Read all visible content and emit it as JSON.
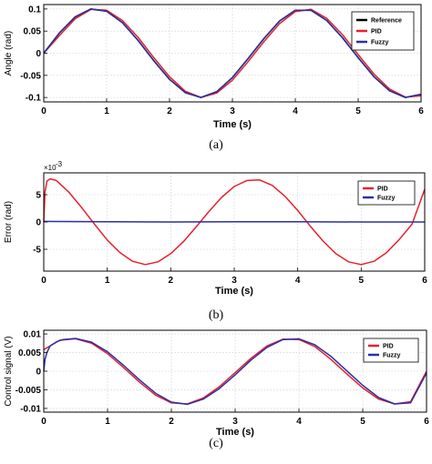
{
  "chart_data": [
    {
      "type": "line",
      "caption": "(a)",
      "xlabel": "Time (s)",
      "ylabel": "Angle (rad)",
      "xlim": [
        0,
        6
      ],
      "ylim": [
        -0.11,
        0.11
      ],
      "xticks": [
        0,
        1,
        2,
        3,
        4,
        5,
        6
      ],
      "xtick_labels": [
        "0",
        "1",
        "2",
        "3",
        "4",
        "5",
        "6"
      ],
      "yticks": [
        -0.1,
        -0.05,
        0,
        0.05,
        0.1
      ],
      "ytick_labels": [
        "-0.1",
        "-0.05",
        "0",
        "0.05",
        "0.1"
      ],
      "grid": true,
      "legend": "top-right",
      "series": [
        {
          "name": "Reference",
          "color": "#000000",
          "x": [
            0,
            0.25,
            0.5,
            0.75,
            1,
            1.25,
            1.5,
            1.75,
            2,
            2.25,
            2.5,
            2.75,
            3,
            3.25,
            3.5,
            3.75,
            4,
            4.25,
            4.5,
            4.75,
            5,
            5.25,
            5.5,
            5.75,
            6
          ],
          "y": [
            0,
            0.046,
            0.082,
            0.1,
            0.095,
            0.069,
            0.029,
            -0.017,
            -0.059,
            -0.089,
            -0.1,
            -0.087,
            -0.055,
            -0.012,
            0.033,
            0.073,
            0.097,
            0.097,
            0.074,
            0.035,
            -0.01,
            -0.053,
            -0.085,
            -0.1,
            -0.093
          ]
        },
        {
          "name": "PID",
          "color": "#e8202a",
          "x": [
            0,
            0.25,
            0.5,
            0.75,
            1,
            1.25,
            1.5,
            1.75,
            2,
            2.25,
            2.5,
            2.75,
            3,
            3.25,
            3.5,
            3.75,
            4,
            4.25,
            4.5,
            4.75,
            5,
            5.25,
            5.5,
            5.75,
            6
          ],
          "y": [
            0,
            0.04,
            0.078,
            0.099,
            0.097,
            0.074,
            0.036,
            -0.01,
            -0.053,
            -0.086,
            -0.1,
            -0.09,
            -0.061,
            -0.019,
            0.026,
            0.067,
            0.094,
            0.099,
            0.079,
            0.042,
            -0.003,
            -0.047,
            -0.081,
            -0.099,
            -0.096
          ]
        },
        {
          "name": "Fuzzy",
          "color": "#2830a8",
          "x": [
            0,
            0.25,
            0.5,
            0.75,
            1,
            1.25,
            1.5,
            1.75,
            2,
            2.25,
            2.5,
            2.75,
            3,
            3.25,
            3.5,
            3.75,
            4,
            4.25,
            4.5,
            4.75,
            5,
            5.25,
            5.5,
            5.75,
            6
          ],
          "y": [
            0,
            0.046,
            0.082,
            0.1,
            0.095,
            0.069,
            0.029,
            -0.017,
            -0.059,
            -0.089,
            -0.1,
            -0.087,
            -0.055,
            -0.012,
            0.033,
            0.073,
            0.097,
            0.097,
            0.074,
            0.035,
            -0.01,
            -0.053,
            -0.085,
            -0.1,
            -0.093
          ]
        }
      ]
    },
    {
      "type": "line",
      "caption": "(b)",
      "xlabel": "Time (s)",
      "ylabel": "Error (rad)",
      "y_multiplier": "×10",
      "y_multiplier_exp": "-3",
      "xlim": [
        0,
        6
      ],
      "ylim": [
        -9,
        9
      ],
      "xticks": [
        0,
        1,
        2,
        3,
        4,
        5,
        6
      ],
      "xtick_labels": [
        "0",
        "1",
        "2",
        "3",
        "4",
        "5",
        "6"
      ],
      "yticks": [
        -5,
        0,
        5
      ],
      "ytick_labels": [
        "-5",
        "0",
        "5"
      ],
      "grid": true,
      "legend": "top-right",
      "series": [
        {
          "name": "PID",
          "color": "#e8202a",
          "x": [
            0,
            0.02,
            0.05,
            0.1,
            0.2,
            0.4,
            0.6,
            0.8,
            1.0,
            1.2,
            1.4,
            1.6,
            1.8,
            2.0,
            2.2,
            2.4,
            2.6,
            2.8,
            3.0,
            3.2,
            3.4,
            3.6,
            3.8,
            4.0,
            4.2,
            4.4,
            4.6,
            4.8,
            5.0,
            5.2,
            5.4,
            5.6,
            5.8,
            6.0
          ],
          "y": [
            0,
            5.5,
            7.5,
            7.9,
            7.6,
            5.4,
            2.6,
            -0.4,
            -3.3,
            -5.6,
            -7.2,
            -7.8,
            -7.3,
            -5.8,
            -3.6,
            -0.9,
            1.9,
            4.5,
            6.5,
            7.6,
            7.7,
            6.7,
            4.7,
            2.1,
            -0.8,
            -3.5,
            -5.8,
            -7.3,
            -7.8,
            -7.2,
            -5.6,
            -3.2,
            -0.4,
            6.0
          ]
        },
        {
          "name": "Fuzzy",
          "color": "#2830a8",
          "x": [
            0,
            1,
            2,
            3,
            4,
            5,
            6
          ],
          "y": [
            0.1,
            0.05,
            0.0,
            0.05,
            0.05,
            0.0,
            0.0
          ]
        }
      ]
    },
    {
      "type": "line",
      "caption": "(c)",
      "xlabel": "Time (s)",
      "ylabel": "Control signal (V)",
      "xlim": [
        0,
        6
      ],
      "ylim": [
        -0.011,
        0.011
      ],
      "xticks": [
        0,
        1,
        2,
        3,
        4,
        5,
        6
      ],
      "xtick_labels": [
        "0",
        "1",
        "2",
        "3",
        "4",
        "5",
        "6"
      ],
      "yticks": [
        -0.01,
        -0.005,
        0,
        0.005,
        0.01
      ],
      "ytick_labels": [
        "-0.01",
        "-0.005",
        "0",
        "0.005",
        "0.01"
      ],
      "grid": true,
      "legend": "right",
      "series": [
        {
          "name": "PID",
          "color": "#e8202a",
          "x": [
            0,
            0.25,
            0.5,
            0.75,
            1,
            1.25,
            1.5,
            1.75,
            2,
            2.25,
            2.5,
            2.75,
            3,
            3.25,
            3.5,
            3.75,
            4,
            4.25,
            4.5,
            4.75,
            5,
            5.25,
            5.5,
            5.75,
            6
          ],
          "y": [
            0.0058,
            0.0083,
            0.0087,
            0.0075,
            0.0047,
            0.001,
            -0.0029,
            -0.0064,
            -0.0085,
            -0.0088,
            -0.0072,
            -0.0042,
            -0.0004,
            0.0035,
            0.0068,
            0.0086,
            0.0085,
            0.0066,
            0.0032,
            -0.0007,
            -0.0045,
            -0.0075,
            -0.0088,
            -0.0082,
            -0.0
          ]
        },
        {
          "name": "Fuzzy",
          "color": "#2830a8",
          "x": [
            0,
            0.02,
            0.05,
            0.1,
            0.2,
            0.3,
            0.5,
            0.75,
            1,
            1.25,
            1.5,
            1.75,
            2,
            2.25,
            2.5,
            2.75,
            3,
            3.25,
            3.5,
            3.75,
            4,
            4.25,
            4.5,
            4.75,
            5,
            5.25,
            5.5,
            5.75,
            6
          ],
          "y": [
            0.0,
            0.0032,
            0.005,
            0.0068,
            0.0079,
            0.0085,
            0.0088,
            0.0078,
            0.0052,
            0.0016,
            -0.0023,
            -0.0059,
            -0.0083,
            -0.0089,
            -0.0075,
            -0.0047,
            -0.001,
            0.003,
            0.0064,
            0.0085,
            0.0087,
            0.0071,
            0.004,
            0.0001,
            -0.0038,
            -0.0071,
            -0.0088,
            -0.0085,
            -0.0005
          ]
        }
      ]
    }
  ]
}
